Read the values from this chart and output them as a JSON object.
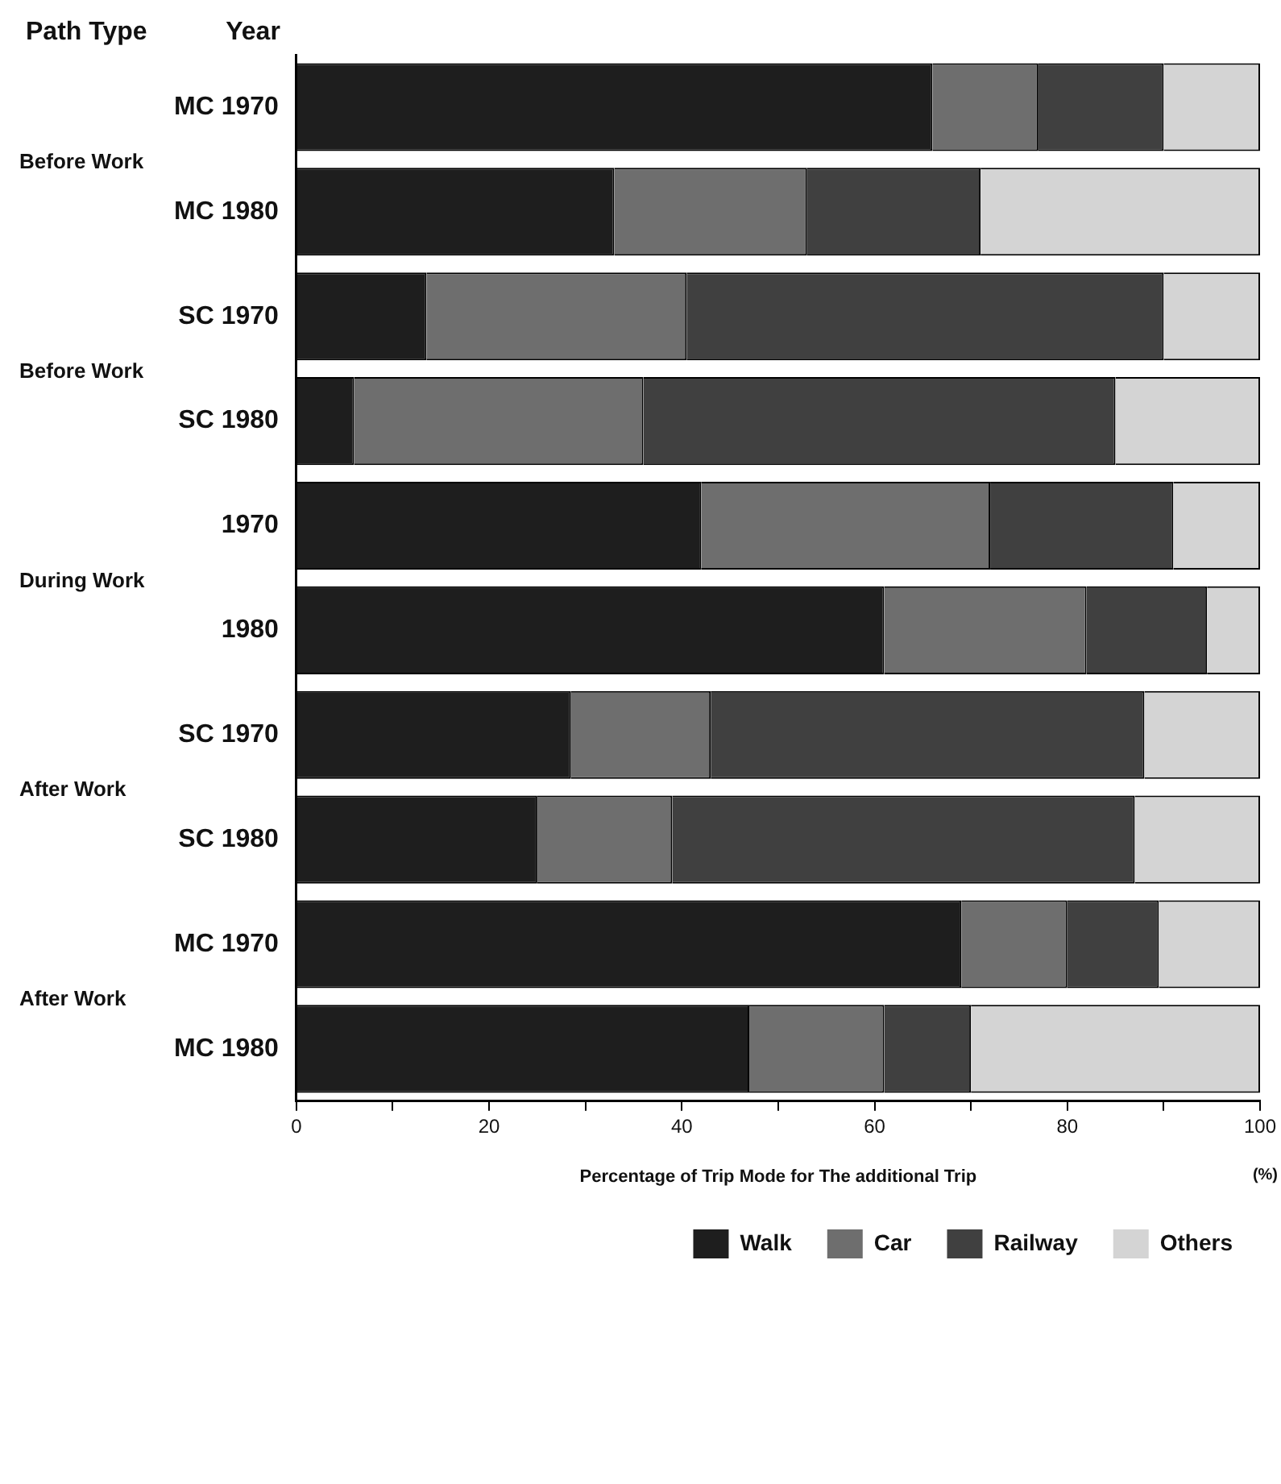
{
  "chart_data": {
    "type": "bar",
    "orientation": "horizontal",
    "stacked": true,
    "ylabel": "Year",
    "xlabel": "Percentage of Trip Mode for The additional Trip",
    "annotations": [
      "Path Type",
      "(%)",
      "Before Work",
      "Before Work",
      "During Work",
      "After Work",
      "After Work"
    ],
    "categories": [
      "MC 1970",
      "MC 1980",
      "SC 1970",
      "SC 1980",
      "1970",
      "1980",
      "SC 1970",
      "SC 1980",
      "MC 1970",
      "MC 1980"
    ],
    "series": [
      {
        "name": "Walk",
        "color": "#1e1e1e",
        "values": [
          66,
          33,
          13.5,
          6,
          42,
          61,
          28.5,
          25,
          69,
          47
        ]
      },
      {
        "name": "Car",
        "color": "#6e6e6e",
        "values": [
          11,
          20,
          27,
          30,
          30,
          21,
          14.5,
          14,
          11,
          14
        ]
      },
      {
        "name": "Railway",
        "color": "#404040",
        "values": [
          13,
          18,
          49.5,
          49,
          19,
          12.5,
          45,
          48,
          9.5,
          9
        ]
      },
      {
        "name": "Others",
        "color": "#d4d4d4",
        "values": [
          10,
          29,
          10,
          15,
          9,
          5.5,
          12,
          13,
          10.5,
          30
        ]
      }
    ],
    "xlim": [
      0,
      100
    ],
    "xticks": [
      0,
      {
        "value": 10,
        "label": null
      },
      20,
      {
        "value": 30,
        "label": null
      },
      40,
      {
        "value": 50,
        "label": null
      },
      60,
      {
        "value": 70,
        "label": null
      },
      80,
      {
        "value": 90,
        "label": null
      },
      100
    ],
    "grid": false,
    "legend": "bottom"
  }
}
